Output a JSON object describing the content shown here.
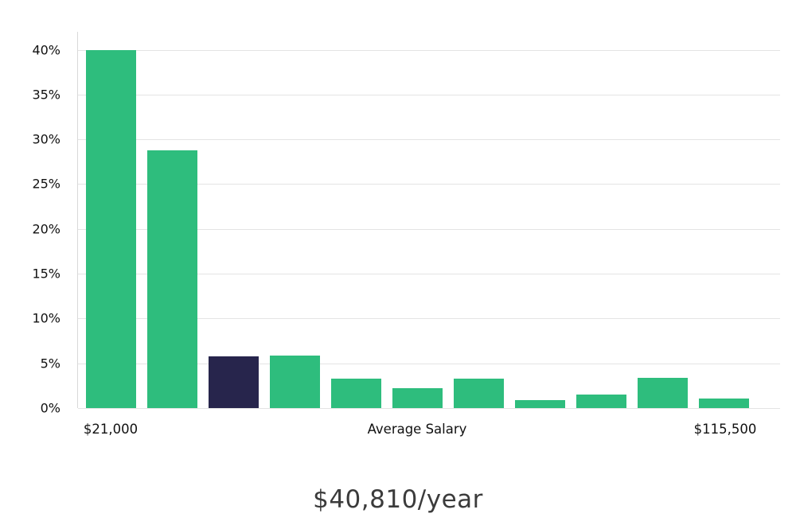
{
  "chart_data": {
    "type": "bar",
    "title": "$40,810/year",
    "x_axis_labels": {
      "left": "$21,000",
      "center": "Average Salary",
      "right": "$115,500"
    },
    "y_ticks": [
      "0%",
      "5%",
      "10%",
      "15%",
      "20%",
      "25%",
      "30%",
      "35%",
      "40%"
    ],
    "ylim": [
      0,
      42
    ],
    "values": [
      40,
      28.8,
      5.8,
      5.9,
      3.3,
      2.2,
      3.3,
      0.9,
      1.5,
      3.4,
      1.1
    ],
    "highlighted_index": 2,
    "colors": {
      "bar": "#2ebd7d",
      "highlight": "#27254c",
      "gridline": "#e4e4e4"
    },
    "legend": "none",
    "grid": "horizontal"
  }
}
